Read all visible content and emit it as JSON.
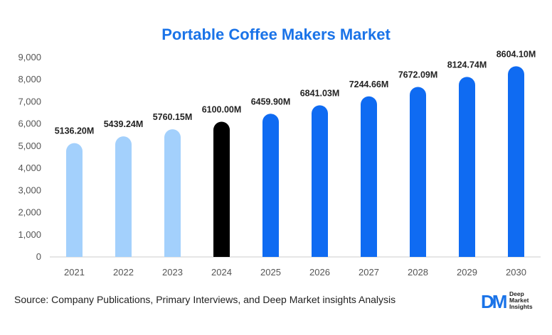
{
  "chart_data": {
    "type": "bar",
    "title": "Portable Coffee Makers Market",
    "categories": [
      "2021",
      "2022",
      "2023",
      "2024",
      "2025",
      "2026",
      "2027",
      "2028",
      "2029",
      "2030"
    ],
    "values": [
      5136.2,
      5439.24,
      5760.15,
      6100.0,
      6459.9,
      6841.03,
      7244.66,
      7672.09,
      8124.74,
      8604.1
    ],
    "data_labels": [
      "5136.20M",
      "5439.24M",
      "5760.15M",
      "6100.00M",
      "6459.90M",
      "6841.03M",
      "7244.66M",
      "7672.09M",
      "8124.74M",
      "8604.10M"
    ],
    "ylim": [
      0,
      9000
    ],
    "yticks": [
      "0",
      "1,000",
      "2,000",
      "3,000",
      "4,000",
      "5,000",
      "6,000",
      "7,000",
      "8,000",
      "9,000"
    ],
    "bar_colors": [
      "#a3d0fc",
      "#a3d0fc",
      "#a3d0fc",
      "#000000",
      "#0f6bf2",
      "#0f6bf2",
      "#0f6bf2",
      "#0f6bf2",
      "#0f6bf2",
      "#0f6bf2"
    ],
    "grid": false,
    "legend": "none"
  },
  "footer": {
    "source_label": "Source",
    "source_text": ": Company Publications, Primary Interviews, and Deep Market insights Analysis"
  },
  "logo": {
    "mark": "DM",
    "line1": "Deep",
    "line2": "Market",
    "line3": "Insights"
  }
}
